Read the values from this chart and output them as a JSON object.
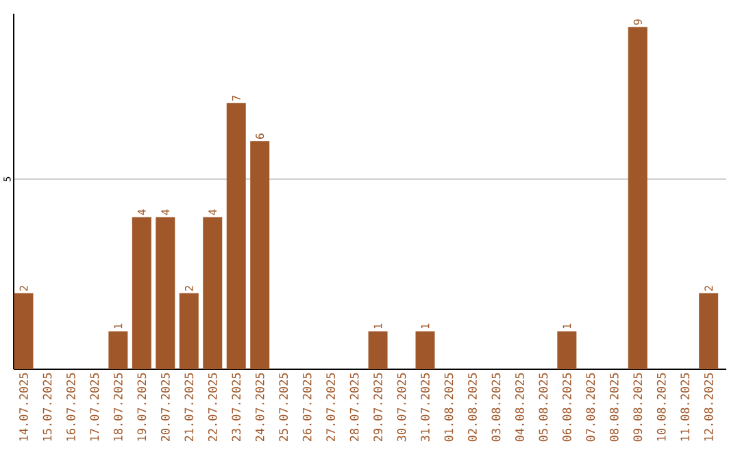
{
  "chart_data": {
    "type": "bar",
    "categories": [
      "14.07.2025",
      "15.07.2025",
      "16.07.2025",
      "17.07.2025",
      "18.07.2025",
      "19.07.2025",
      "20.07.2025",
      "21.07.2025",
      "22.07.2025",
      "23.07.2025",
      "24.07.2025",
      "25.07.2025",
      "26.07.2025",
      "27.07.2025",
      "28.07.2025",
      "29.07.2025",
      "30.07.2025",
      "31.07.2025",
      "01.08.2025",
      "02.08.2025",
      "03.08.2025",
      "04.08.2025",
      "05.08.2025",
      "06.08.2025",
      "07.08.2025",
      "08.08.2025",
      "09.08.2025",
      "10.08.2025",
      "11.08.2025",
      "12.08.2025"
    ],
    "values": [
      2,
      0,
      0,
      0,
      1,
      4,
      4,
      2,
      4,
      7,
      6,
      0,
      0,
      0,
      0,
      1,
      0,
      1,
      0,
      0,
      0,
      0,
      0,
      1,
      0,
      0,
      9,
      0,
      0,
      2
    ],
    "value_labels": [
      "2",
      null,
      null,
      null,
      "1",
      "4",
      "4",
      "2",
      "4",
      "7",
      "6",
      null,
      null,
      null,
      null,
      "1",
      null,
      "1",
      null,
      null,
      null,
      null,
      null,
      "1",
      null,
      null,
      "9",
      null,
      null,
      "2"
    ],
    "color": "#a0582a",
    "ylim": [
      0,
      9.35
    ],
    "yticks": [
      5
    ],
    "grid": "y"
  }
}
